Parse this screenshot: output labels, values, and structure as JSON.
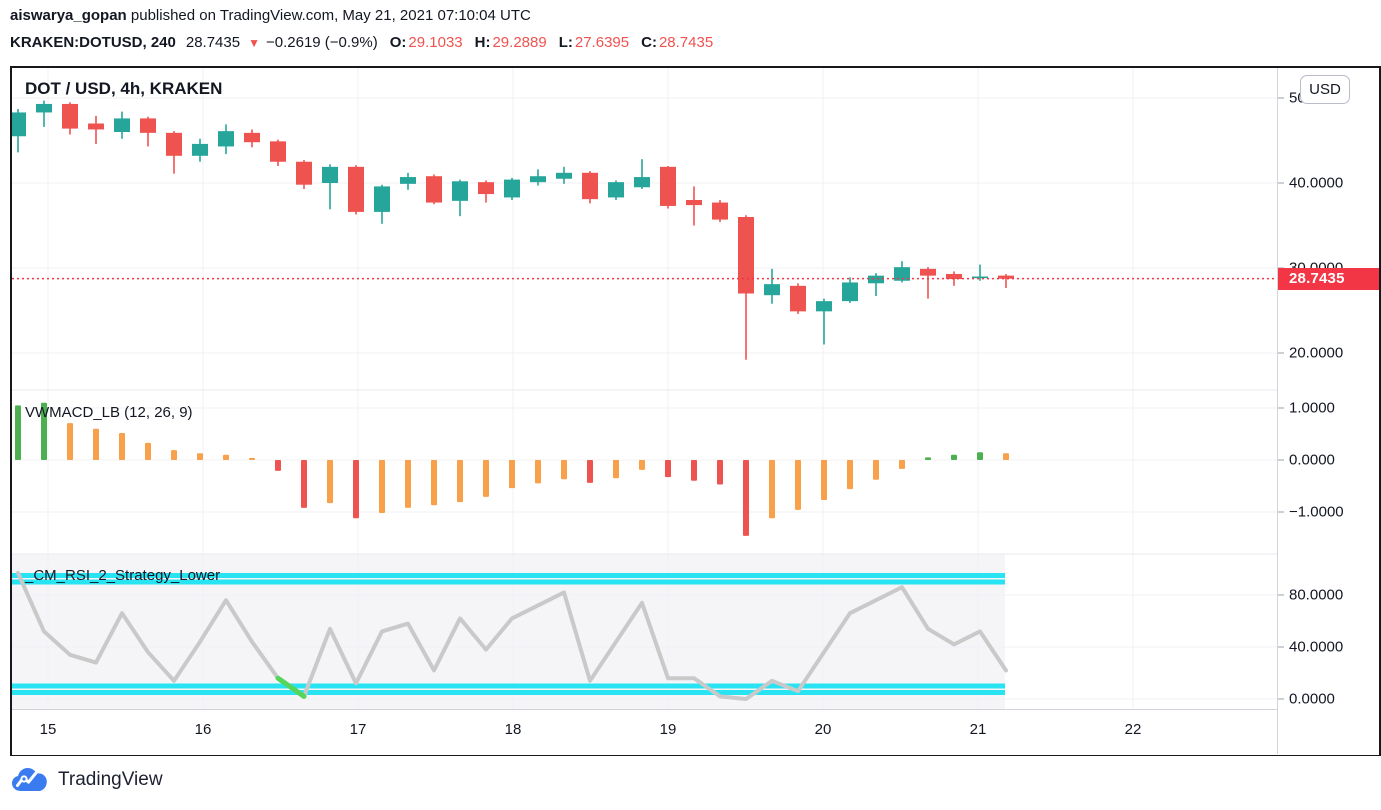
{
  "header": {
    "author": "aiswarya_gopan",
    "published": " published on TradingView.com, May 21, 2021 07:10:04 UTC",
    "symbol": "KRAKEN:DOTUSD, 240",
    "last": "28.7435",
    "direction_icon": "▼",
    "change": "−0.2619 (−0.9%)",
    "o_label": "O:",
    "o_value": "29.1033",
    "h_label": "H:",
    "h_value": "29.2889",
    "l_label": "L:",
    "l_value": "27.6395",
    "c_label": "C:",
    "c_value": "28.7435"
  },
  "chart": {
    "title": "DOT / USD, 4h, KRAKEN",
    "currency_badge": "USD",
    "price_tag": "28.7435"
  },
  "panes": {
    "macd_label": "VWMACD_LB (12, 26, 9)",
    "rsi_label": "_CM_RSI_2_Strategy_Lower"
  },
  "axes": {
    "price_ticks": [
      "50.0000",
      "40.0000",
      "30.0000",
      "20.0000"
    ],
    "macd_ticks": [
      "1.0000",
      "0.0000",
      "−1.0000"
    ],
    "rsi_ticks": [
      "80.0000",
      "40.0000",
      "0.0000"
    ],
    "time_ticks": [
      "15",
      "16",
      "17",
      "18",
      "19",
      "20",
      "21",
      "22"
    ]
  },
  "footer": {
    "brand": "TradingView"
  },
  "colors": {
    "text": "#131722",
    "value_red": "#ef5350",
    "candle_up": "#26a69a",
    "candle_down": "#ef5350",
    "price_line": "#f23645",
    "macd_palette": {
      "g": "#4caf50",
      "o": "#f9a04b",
      "r": "#ef5350"
    },
    "rsi_line": "#c9c9c9",
    "rsi_signal": "#56d45b",
    "rsi_band": "#28e4f3",
    "rsi_pane_bg": "#f5f5f7",
    "grid": "#f0f1f4",
    "pane_separator": "#e8eaef",
    "logo_blue": "#3a7bf0"
  },
  "chart_data": {
    "type": "candlestick",
    "symbol": "KRAKEN:DOTUSD",
    "interval": "4h",
    "exchange": "KRAKEN",
    "last_price": 28.7435,
    "current_bar": {
      "open": 29.1033,
      "high": 29.2889,
      "low": 27.6395,
      "close": 28.7435
    },
    "change": -0.2619,
    "change_pct": -0.9,
    "time_axis": {
      "labels": [
        "15",
        "16",
        "17",
        "18",
        "19",
        "20",
        "21",
        "22"
      ],
      "unit": "day, May 2021"
    },
    "price_axis": {
      "ticks": [
        50,
        40,
        30,
        20
      ]
    },
    "candles": [
      [
        45.5,
        48.7,
        43.6,
        48.3
      ],
      [
        48.3,
        49.7,
        46.6,
        49.3
      ],
      [
        49.3,
        49.5,
        45.7,
        46.4
      ],
      [
        47.0,
        47.9,
        44.6,
        46.3
      ],
      [
        46.0,
        48.4,
        45.2,
        47.6
      ],
      [
        47.6,
        47.8,
        44.3,
        45.9
      ],
      [
        45.9,
        46.1,
        41.1,
        43.2
      ],
      [
        43.2,
        45.2,
        42.5,
        44.6
      ],
      [
        44.3,
        46.9,
        43.4,
        46.1
      ],
      [
        45.9,
        46.3,
        44.2,
        44.8
      ],
      [
        44.9,
        45.1,
        42.0,
        42.5
      ],
      [
        42.5,
        42.7,
        39.3,
        39.8
      ],
      [
        40.0,
        42.2,
        36.9,
        41.9
      ],
      [
        41.9,
        42.1,
        36.3,
        36.6
      ],
      [
        36.6,
        39.8,
        35.2,
        39.6
      ],
      [
        39.9,
        41.2,
        39.2,
        40.7
      ],
      [
        40.8,
        41.0,
        37.5,
        37.7
      ],
      [
        37.9,
        40.4,
        36.1,
        40.2
      ],
      [
        40.1,
        40.3,
        37.7,
        38.7
      ],
      [
        38.3,
        40.6,
        38.0,
        40.4
      ],
      [
        40.1,
        41.6,
        39.7,
        40.8
      ],
      [
        40.5,
        41.9,
        39.9,
        41.2
      ],
      [
        41.2,
        41.4,
        37.6,
        38.1
      ],
      [
        38.3,
        40.3,
        38.0,
        40.1
      ],
      [
        39.5,
        42.8,
        39.3,
        40.7
      ],
      [
        41.9,
        42.0,
        37.0,
        37.3
      ],
      [
        38.0,
        39.6,
        35.0,
        37.4
      ],
      [
        37.7,
        38.0,
        35.4,
        35.7
      ],
      [
        36.0,
        36.2,
        19.2,
        27.0
      ],
      [
        26.8,
        29.9,
        25.8,
        28.1
      ],
      [
        27.9,
        28.2,
        24.6,
        24.9
      ],
      [
        24.9,
        26.4,
        21.0,
        26.1
      ],
      [
        26.1,
        28.9,
        25.9,
        28.3
      ],
      [
        28.2,
        29.4,
        26.7,
        29.1
      ],
      [
        28.5,
        30.8,
        28.3,
        30.1
      ],
      [
        29.9,
        30.1,
        26.4,
        29.1
      ],
      [
        29.3,
        29.6,
        27.9,
        28.7
      ],
      [
        28.8,
        30.4,
        28.5,
        29.0
      ],
      [
        29.1033,
        29.2889,
        27.6395,
        28.7435
      ]
    ],
    "macd": {
      "title": "VWMACD_LB (12, 26, 9)",
      "axis_ticks": [
        1,
        0,
        -1
      ],
      "bars": [
        [
          1.05,
          "g"
        ],
        [
          1.1,
          "g"
        ],
        [
          0.71,
          "o"
        ],
        [
          0.6,
          "o"
        ],
        [
          0.52,
          "o"
        ],
        [
          0.33,
          "o"
        ],
        [
          0.19,
          "o"
        ],
        [
          0.13,
          "o"
        ],
        [
          0.1,
          "o"
        ],
        [
          0.04,
          "o"
        ],
        [
          -0.21,
          "r"
        ],
        [
          -0.92,
          "r"
        ],
        [
          -0.83,
          "o"
        ],
        [
          -1.12,
          "r"
        ],
        [
          -1.02,
          "o"
        ],
        [
          -0.92,
          "o"
        ],
        [
          -0.87,
          "o"
        ],
        [
          -0.81,
          "o"
        ],
        [
          -0.71,
          "o"
        ],
        [
          -0.54,
          "o"
        ],
        [
          -0.45,
          "o"
        ],
        [
          -0.37,
          "o"
        ],
        [
          -0.44,
          "r"
        ],
        [
          -0.35,
          "o"
        ],
        [
          -0.19,
          "o"
        ],
        [
          -0.33,
          "r"
        ],
        [
          -0.4,
          "r"
        ],
        [
          -0.47,
          "r"
        ],
        [
          -1.46,
          "r"
        ],
        [
          -1.12,
          "o"
        ],
        [
          -0.96,
          "o"
        ],
        [
          -0.77,
          "o"
        ],
        [
          -0.56,
          "o"
        ],
        [
          -0.38,
          "o"
        ],
        [
          -0.17,
          "o"
        ],
        [
          0.05,
          "g"
        ],
        [
          0.1,
          "g"
        ],
        [
          0.15,
          "g"
        ],
        [
          0.13,
          "o"
        ]
      ]
    },
    "rsi": {
      "title": "_CM_RSI_2_Strategy_Lower",
      "axis_ticks": [
        80,
        40,
        0
      ],
      "values": [
        97,
        52,
        34,
        28,
        66,
        36,
        14,
        44,
        76,
        44,
        16,
        2,
        54,
        12,
        52,
        58,
        22,
        62,
        38,
        62,
        72,
        82,
        14,
        44,
        74,
        16,
        16,
        2,
        0,
        14,
        6,
        36,
        66,
        76,
        86,
        54,
        42,
        52,
        22
      ],
      "bands": [
        95,
        90,
        10,
        5
      ],
      "signal_segment": [
        10,
        11
      ]
    }
  }
}
